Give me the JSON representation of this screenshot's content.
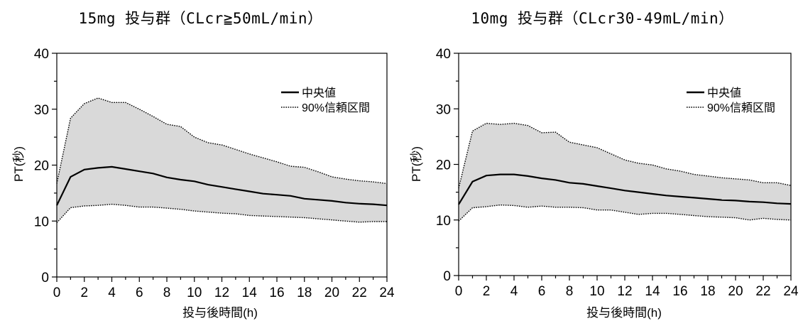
{
  "chart_data": [
    {
      "type": "area",
      "title": "15mg 投与群（CLcr≧50mL/min）",
      "xlabel": "投与後時間(h)",
      "ylabel": "PT(秒)",
      "xlim": [
        0,
        24
      ],
      "ylim": [
        0,
        40
      ],
      "xticks": [
        0,
        2,
        4,
        6,
        8,
        10,
        12,
        14,
        16,
        18,
        20,
        22,
        24
      ],
      "yticks": [
        0,
        10,
        20,
        30,
        40
      ],
      "grid": false,
      "legend_position": "top-right",
      "x": [
        0,
        1,
        2,
        3,
        4,
        5,
        6,
        7,
        8,
        9,
        10,
        11,
        12,
        13,
        14,
        15,
        16,
        17,
        18,
        19,
        20,
        21,
        22,
        23,
        24
      ],
      "series": [
        {
          "name": "中央値",
          "style": "solid",
          "values": [
            12.8,
            17.9,
            19.2,
            19.5,
            19.7,
            19.3,
            18.9,
            18.5,
            17.8,
            17.4,
            17.1,
            16.5,
            16.1,
            15.7,
            15.3,
            14.9,
            14.7,
            14.5,
            14.0,
            13.8,
            13.6,
            13.3,
            13.1,
            13.0,
            12.8
          ]
        },
        {
          "name": "90%信頼区間",
          "style": "dotted",
          "upper": [
            16.7,
            28.4,
            31.0,
            32.0,
            31.2,
            31.2,
            30.0,
            28.7,
            27.3,
            26.9,
            25.0,
            24.0,
            23.6,
            22.8,
            22.0,
            21.3,
            20.6,
            19.8,
            19.6,
            18.8,
            17.9,
            17.5,
            17.2,
            17.0,
            16.7
          ],
          "lower": [
            9.7,
            12.4,
            12.7,
            12.8,
            13.0,
            12.8,
            12.5,
            12.5,
            12.3,
            12.1,
            11.8,
            11.6,
            11.4,
            11.3,
            11.0,
            10.9,
            10.8,
            10.7,
            10.6,
            10.4,
            10.2,
            10.0,
            9.8,
            9.9,
            9.9
          ]
        }
      ]
    },
    {
      "type": "area",
      "title": "10mg 投与群（CLcr30-49mL/min）",
      "xlabel": "投与後時間(h)",
      "ylabel": "PT(秒)",
      "xlim": [
        0,
        24
      ],
      "ylim": [
        0,
        40
      ],
      "xticks": [
        0,
        2,
        4,
        6,
        8,
        10,
        12,
        14,
        16,
        18,
        20,
        22,
        24
      ],
      "yticks": [
        0,
        10,
        20,
        30,
        40
      ],
      "grid": false,
      "legend_position": "top-right",
      "x": [
        0,
        1,
        2,
        3,
        4,
        5,
        6,
        7,
        8,
        9,
        10,
        11,
        12,
        13,
        14,
        15,
        16,
        17,
        18,
        19,
        20,
        21,
        22,
        23,
        24
      ],
      "series": [
        {
          "name": "中央値",
          "style": "solid",
          "values": [
            12.8,
            16.9,
            18.0,
            18.2,
            18.2,
            17.9,
            17.5,
            17.2,
            16.7,
            16.5,
            16.1,
            15.7,
            15.3,
            15.0,
            14.7,
            14.4,
            14.2,
            14.0,
            13.8,
            13.6,
            13.5,
            13.3,
            13.2,
            13.0,
            12.9
          ]
        },
        {
          "name": "90%信頼区間",
          "style": "dotted",
          "upper": [
            15.7,
            26.0,
            27.4,
            27.2,
            27.4,
            27.0,
            25.7,
            25.8,
            24.0,
            23.5,
            23.0,
            21.9,
            20.8,
            20.2,
            19.9,
            19.2,
            18.8,
            18.2,
            17.9,
            17.6,
            17.4,
            17.2,
            16.7,
            16.7,
            16.2
          ]
        },
        {
          "name": "",
          "style": "dotted-lower",
          "values": [
            9.8,
            12.2,
            12.4,
            12.7,
            12.6,
            12.3,
            12.5,
            12.3,
            12.3,
            12.2,
            11.8,
            11.8,
            11.4,
            11.0,
            11.2,
            11.2,
            11.0,
            10.8,
            10.6,
            10.5,
            10.4,
            10.0,
            10.3,
            10.1,
            10.0
          ]
        }
      ]
    }
  ]
}
